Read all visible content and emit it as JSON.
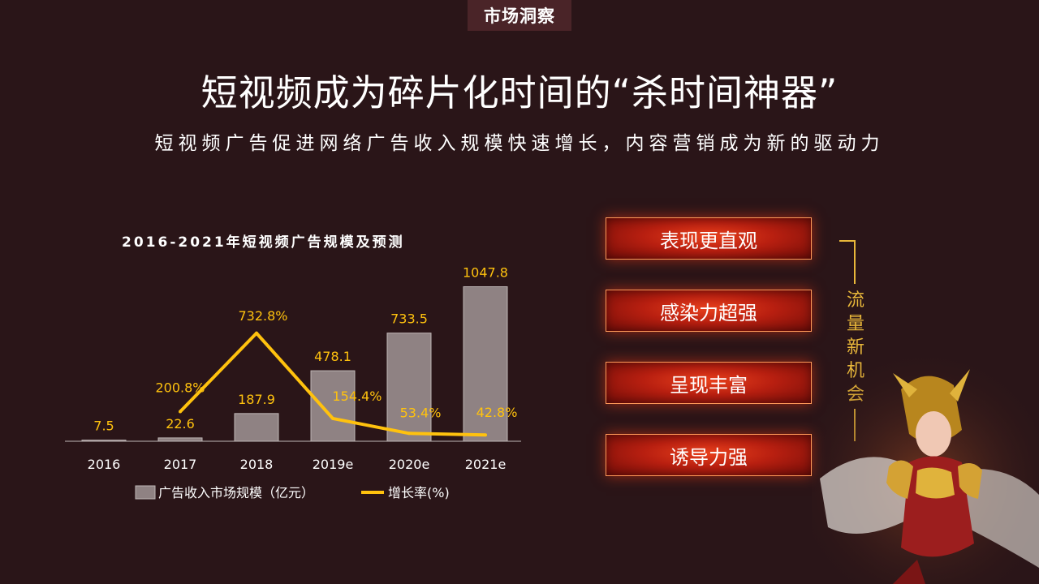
{
  "header": {
    "tag": "市场洞察",
    "title": "短视频成为碎片化时间的“杀时间神器”",
    "subtitle": "短视频广告促进网络广告收入规模快速增长，内容营销成为新的驱动力"
  },
  "chart_data": {
    "type": "bar",
    "title": "2016-2021年短视频广告规模及预测",
    "categories": [
      "2016",
      "2017",
      "2018",
      "2019e",
      "2020e",
      "2021e"
    ],
    "series": [
      {
        "name": "广告收入市场规模（亿元）",
        "type": "bar",
        "values": [
          7.5,
          22.6,
          187.9,
          478.1,
          733.5,
          1047.8
        ],
        "labels": [
          "7.5",
          "22.6",
          "187.9",
          "478.1",
          "733.5",
          "1047.8"
        ],
        "color": "#8f8283"
      },
      {
        "name": "增长率(%)",
        "type": "line",
        "values": [
          200.8,
          732.8,
          154.4,
          53.4,
          42.8
        ],
        "x": [
          "2017",
          "2018",
          "2019e",
          "2020e",
          "2021e"
        ],
        "labels": [
          "200.8%",
          "732.8%",
          "154.4%",
          "53.4%",
          "42.8%"
        ],
        "color": "#ffc20e"
      }
    ],
    "ylim_bar": [
      0,
      1100
    ],
    "ylim_line": [
      0,
      1100
    ],
    "legend_position": "bottom",
    "grid": false
  },
  "features": [
    {
      "label": "表现更直观"
    },
    {
      "label": "感染力超强"
    },
    {
      "label": "呈现丰富"
    },
    {
      "label": "诱导力强"
    }
  ],
  "opportunity": {
    "label": "流量新机会",
    "color": "#e8b73a"
  },
  "colors": {
    "background": "#2a1518",
    "accent": "#ffc20e",
    "button": "#c0220f"
  }
}
